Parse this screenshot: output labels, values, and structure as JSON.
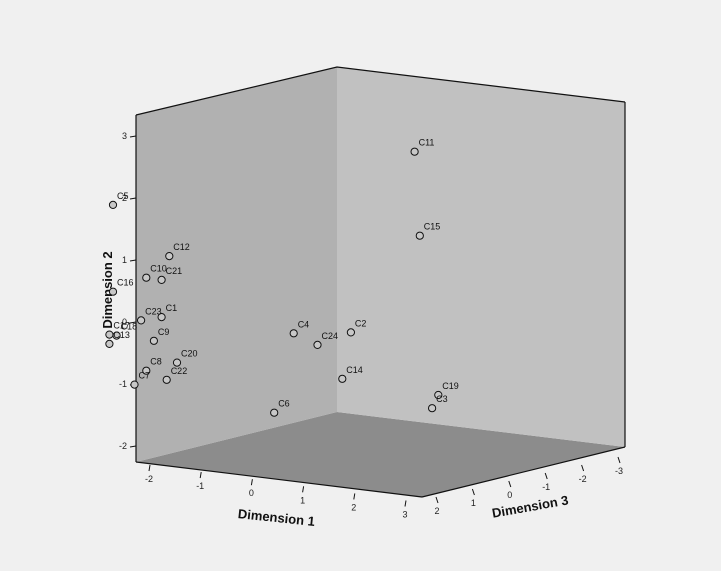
{
  "chart_data": {
    "type": "scatter",
    "projection": "3d",
    "axes": {
      "x": {
        "label": "Dimension 1",
        "range": [
          -2.3,
          3.2
        ],
        "ticks": [
          -2,
          -1,
          0,
          1,
          2,
          3
        ]
      },
      "y": {
        "label": "Dimension 2",
        "range": [
          -2.2,
          3.3
        ],
        "ticks": [
          -2,
          -1,
          0,
          1,
          2,
          3
        ]
      },
      "z": {
        "label": "Dimension 3",
        "range": [
          -3.2,
          2.3
        ],
        "ticks": [
          2,
          1,
          0,
          -1,
          -2,
          -3
        ]
      }
    },
    "colors": {
      "background": "#f0f0f0",
      "back_wall": "#b1b1b1",
      "right_wall": "#c1c1c1",
      "floor": "#8c8c8c",
      "marker_fill": "#c8c8c8"
    },
    "points": [
      {
        "label": "C11",
        "x": 1.15,
        "y": 2.5,
        "z": -2.86
      },
      {
        "label": "C15",
        "x": 1.23,
        "y": 1.15,
        "z": -2.89
      },
      {
        "label": "C5",
        "x": -1.25,
        "y": 2.0,
        "z": 2.05
      },
      {
        "label": "C12",
        "x": -0.15,
        "y": 1.3,
        "z": 2.05
      },
      {
        "label": "C10",
        "x": -0.6,
        "y": 0.9,
        "z": 2.05
      },
      {
        "label": "C21",
        "x": -0.3,
        "y": 0.9,
        "z": 2.05
      },
      {
        "label": "C16",
        "x": -1.25,
        "y": 0.6,
        "z": 2.05
      },
      {
        "label": "C1",
        "x": -0.3,
        "y": 0.3,
        "z": 2.05
      },
      {
        "label": "C23",
        "x": -0.7,
        "y": 0.2,
        "z": 2.05
      },
      {
        "label": "C9",
        "x": -0.45,
        "y": -0.1,
        "z": 2.05
      },
      {
        "label": "C17",
        "x": -1.32,
        "y": -0.1,
        "z": 2.05
      },
      {
        "label": "C18",
        "x": -1.18,
        "y": -0.1,
        "z": 2.05
      },
      {
        "label": "C13",
        "x": -1.32,
        "y": -0.25,
        "z": 2.05
      },
      {
        "label": "C20",
        "x": 0.0,
        "y": -0.4,
        "z": 2.05
      },
      {
        "label": "C8",
        "x": -0.6,
        "y": -0.6,
        "z": 2.05
      },
      {
        "label": "C22",
        "x": -0.2,
        "y": -0.7,
        "z": 2.05
      },
      {
        "label": "C7",
        "x": -0.83,
        "y": -0.85,
        "z": 2.05
      },
      {
        "label": "C4",
        "x": 1.49,
        "y": 0.1,
        "z": 0.94
      },
      {
        "label": "C24",
        "x": 1.97,
        "y": -0.03,
        "z": 0.96
      },
      {
        "label": "C2",
        "x": 1.89,
        "y": 0.03,
        "z": -0.07
      },
      {
        "label": "C14",
        "x": 2.02,
        "y": -0.65,
        "z": 0.35
      },
      {
        "label": "C6",
        "x": 1.53,
        "y": -1.1,
        "z": 1.53
      },
      {
        "label": "C19",
        "x": 2.7,
        "y": -1.05,
        "z": -1.33
      },
      {
        "label": "C3",
        "x": 2.43,
        "y": -1.32,
        "z": -1.54
      }
    ]
  }
}
